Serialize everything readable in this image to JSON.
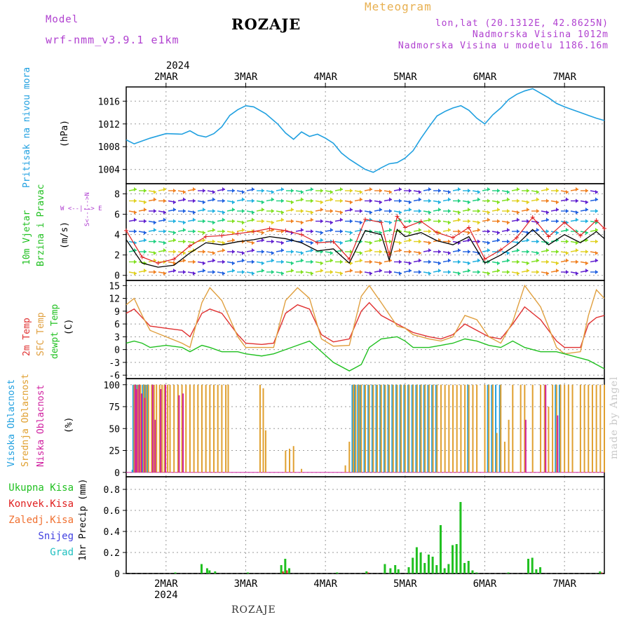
{
  "header": {
    "model_label": "Model",
    "model_name": "wrf-nmm_v3.9.1  e1km",
    "title": "ROZAJE",
    "meteogram": "Meteogram",
    "lonlat": "lon,lat (20.1312E, 42.8625N)",
    "altitude": "Nadmorska Visina 1012m",
    "model_altitude": "Nadmorska Visina u modelu 1186.16m"
  },
  "footer": {
    "station": "ROZAJE",
    "credit": "made by Angel"
  },
  "axis_top": {
    "year": "2024",
    "days": [
      "2MAR",
      "3MAR",
      "4MAR",
      "5MAR",
      "6MAR",
      "7MAR"
    ]
  },
  "axis_bottom": {
    "year": "2024",
    "days": [
      "2MAR",
      "3MAR",
      "4MAR",
      "5MAR",
      "6MAR",
      "7MAR"
    ]
  },
  "colors": {
    "pressure": "#20a0e0",
    "wind_speed": "#000000",
    "gust": "#e02020",
    "t2m": "#e03030",
    "sfc": "#e0a040",
    "dew": "#20c020",
    "high": "#20a0e0",
    "mid": "#e0a030",
    "low": "#d020a0",
    "precip_total": "#20c020",
    "precip_conv": "#e02020"
  },
  "chart_data": [
    {
      "type": "line",
      "panel": "pressure",
      "label_left": "Pritisak na nivou mora",
      "ylabel": "(hPa)",
      "yticks": [
        "1016",
        "1012",
        "1008",
        "1004"
      ],
      "ylim": [
        1001.5,
        1018.5
      ],
      "x_days": [
        1.5,
        1.6,
        1.8,
        2.0,
        2.2,
        2.3,
        2.4,
        2.5,
        2.6,
        2.7,
        2.8,
        2.9,
        3.0,
        3.1,
        3.25,
        3.4,
        3.5,
        3.6,
        3.7,
        3.8,
        3.9,
        4.0,
        4.1,
        4.2,
        4.3,
        4.4,
        4.5,
        4.6,
        4.7,
        4.8,
        4.9,
        5.0,
        5.1,
        5.2,
        5.3,
        5.4,
        5.5,
        5.6,
        5.7,
        5.8,
        5.9,
        6.0,
        6.1,
        6.2,
        6.3,
        6.4,
        6.5,
        6.6,
        6.7,
        6.8,
        6.9,
        7.0,
        7.1,
        7.2,
        7.3,
        7.4,
        7.5
      ],
      "series": [
        {
          "name": "",
          "values": [
            1009.2,
            1008.5,
            1009.5,
            1010.3,
            1010.2,
            1010.8,
            1010.0,
            1009.7,
            1010.3,
            1011.5,
            1013.5,
            1014.5,
            1015.2,
            1015.0,
            1013.8,
            1012.0,
            1010.4,
            1009.3,
            1010.6,
            1009.8,
            1010.2,
            1009.5,
            1008.6,
            1006.9,
            1005.8,
            1004.9,
            1004.0,
            1003.5,
            1004.3,
            1005.0,
            1005.2,
            1006.0,
            1007.3,
            1009.5,
            1011.5,
            1013.4,
            1014.2,
            1014.8,
            1015.2,
            1014.4,
            1013.0,
            1012.0,
            1013.6,
            1014.8,
            1016.3,
            1017.2,
            1017.8,
            1018.2,
            1017.4,
            1016.6,
            1015.6,
            1015.0,
            1014.5,
            1014.0,
            1013.5,
            1013.0,
            1012.6
          ]
        }
      ]
    },
    {
      "type": "line",
      "panel": "wind",
      "label_left_1": "10m Vjetar",
      "label_left_2": "Brzina i Pravac",
      "ylabel": "(m/s)",
      "compass": "W  <--|-->  E",
      "compass_ns": "S<--|-->N",
      "yticks": [
        "8",
        "6",
        "4",
        "2",
        "0"
      ],
      "ylim": [
        -0.5,
        9
      ],
      "x_days": [
        1.5,
        1.7,
        1.9,
        2.1,
        2.3,
        2.5,
        2.7,
        2.9,
        3.1,
        3.3,
        3.5,
        3.7,
        3.9,
        4.1,
        4.3,
        4.5,
        4.7,
        4.8,
        4.9,
        5.0,
        5.2,
        5.4,
        5.6,
        5.8,
        6.0,
        6.2,
        6.4,
        6.6,
        6.8,
        7.0,
        7.2,
        7.4,
        7.5
      ],
      "series": [
        {
          "name": "",
          "values": [
            3.5,
            1.2,
            0.8,
            1.0,
            2.2,
            3.2,
            3.0,
            3.3,
            3.5,
            3.8,
            3.6,
            3.2,
            2.4,
            2.6,
            1.2,
            4.4,
            4.0,
            1.5,
            4.5,
            3.8,
            4.2,
            3.4,
            3.0,
            3.8,
            1.2,
            2.0,
            3.0,
            4.5,
            3.0,
            4.0,
            3.2,
            4.3,
            3.6
          ]
        },
        {
          "name": "",
          "values": [
            4.4,
            1.8,
            1.2,
            1.6,
            2.9,
            3.8,
            3.9,
            4.1,
            4.3,
            4.6,
            4.4,
            4.0,
            3.2,
            3.3,
            1.6,
            5.5,
            5.2,
            2.0,
            5.8,
            4.7,
            5.3,
            4.2,
            3.7,
            4.7,
            1.6,
            2.5,
            3.7,
            5.7,
            3.8,
            5.2,
            3.9,
            5.4,
            4.6
          ]
        }
      ]
    },
    {
      "type": "line",
      "panel": "temperature",
      "label_left_1": "2m Temp",
      "label_left_2": "SFC Temp",
      "label_left_3": "dewpt Temp",
      "ylabel": "(C)",
      "yticks": [
        "15",
        "12",
        "9",
        "6",
        "3",
        "0",
        "-3",
        "-6"
      ],
      "ylim": [
        -6.8,
        16.2
      ],
      "x_days": [
        1.5,
        1.6,
        1.7,
        1.8,
        2.0,
        2.2,
        2.3,
        2.45,
        2.55,
        2.7,
        2.9,
        3.0,
        3.2,
        3.35,
        3.5,
        3.65,
        3.8,
        3.95,
        4.1,
        4.3,
        4.45,
        4.55,
        4.7,
        4.9,
        5.0,
        5.1,
        5.3,
        5.45,
        5.6,
        5.75,
        5.9,
        6.05,
        6.2,
        6.35,
        6.5,
        6.7,
        6.9,
        7.0,
        7.2,
        7.3,
        7.4,
        7.5
      ],
      "series": [
        {
          "name": "",
          "values": [
            8.5,
            9.5,
            7.5,
            5.5,
            5.0,
            4.5,
            3.0,
            8.5,
            9.5,
            8.5,
            3.5,
            1.5,
            1.2,
            1.5,
            8.5,
            10.5,
            9.5,
            3.5,
            1.8,
            2.5,
            9.0,
            11.0,
            8.0,
            6.0,
            5.0,
            4.0,
            3.0,
            2.5,
            3.5,
            6.0,
            4.5,
            3.0,
            2.5,
            6.0,
            10.0,
            7.0,
            2.0,
            0.5,
            0.5,
            6.0,
            7.5,
            8.0
          ]
        },
        {
          "name": "",
          "values": [
            10.5,
            12.0,
            8.0,
            4.5,
            3.0,
            1.5,
            0.5,
            11.0,
            14.5,
            11.5,
            3.0,
            0.5,
            0.5,
            0.5,
            11.5,
            14.5,
            12.0,
            2.5,
            0.8,
            1.0,
            12.5,
            15.0,
            11.0,
            5.5,
            5.0,
            3.5,
            2.5,
            2.0,
            3.0,
            8.0,
            7.0,
            3.0,
            1.5,
            6.5,
            15.0,
            10.0,
            0.5,
            -1.0,
            -0.5,
            8.0,
            14.0,
            12.0
          ]
        },
        {
          "name": "",
          "values": [
            1.5,
            2.0,
            1.5,
            0.5,
            1.0,
            0.5,
            -0.5,
            1.0,
            0.5,
            -0.5,
            -0.5,
            -1.0,
            -1.5,
            -1.0,
            0.0,
            1.0,
            2.0,
            -0.5,
            -3.0,
            -5.0,
            -3.5,
            0.5,
            2.5,
            3.0,
            2.0,
            0.5,
            0.5,
            1.0,
            1.5,
            2.5,
            2.0,
            1.0,
            0.5,
            2.0,
            0.5,
            -0.5,
            -0.5,
            -1.0,
            -2.0,
            -2.5,
            -3.5,
            -4.5
          ]
        }
      ]
    },
    {
      "type": "bar",
      "panel": "clouds",
      "label_left_1": "Visoka Oblacnost",
      "label_left_2": "Srednja Oblacnost",
      "label_left_3": "Niska Oblacnost",
      "ylabel": "(%)",
      "yticks": [
        "100",
        "75",
        "50",
        "25",
        "0"
      ],
      "ylim": [
        -5,
        107
      ],
      "x_days": [
        1.59,
        1.6,
        1.62,
        1.65,
        1.68,
        1.72,
        1.75,
        1.78,
        1.82,
        1.85,
        1.88,
        1.92,
        1.95,
        1.98,
        2.02,
        2.05,
        2.1,
        2.15,
        2.2,
        2.25,
        2.3,
        2.35,
        2.4,
        2.45,
        2.5,
        2.55,
        2.6,
        2.65,
        2.7,
        2.75,
        2.78,
        3.18,
        3.22,
        3.25,
        3.5,
        3.55,
        3.6,
        3.7,
        4.25,
        4.3,
        4.35,
        4.38,
        4.42,
        4.45,
        4.5,
        4.55,
        4.6,
        4.65,
        4.7,
        4.75,
        4.8,
        4.85,
        4.9,
        4.95,
        5.0,
        5.05,
        5.1,
        5.15,
        5.2,
        5.25,
        5.3,
        5.35,
        5.4,
        5.45,
        5.5,
        5.55,
        5.6,
        5.65,
        5.7,
        5.75,
        5.8,
        5.85,
        5.9,
        6.0,
        6.05,
        6.1,
        6.15,
        6.2,
        6.25,
        6.3,
        6.35,
        6.45,
        6.5,
        6.6,
        6.7,
        6.75,
        6.8,
        6.85,
        6.9,
        6.95,
        7.0,
        7.05,
        7.1,
        7.2,
        7.25,
        7.3,
        7.35,
        7.4,
        7.45,
        7.5
      ],
      "series": [
        {
          "name": "",
          "values": [
            3,
            100,
            100,
            100,
            100,
            100,
            100,
            100,
            0,
            0,
            0,
            0,
            0,
            0,
            0,
            0,
            0,
            0,
            0,
            0,
            0,
            0,
            0,
            0,
            0,
            0,
            0,
            0,
            0,
            0,
            0,
            0,
            0,
            0,
            0,
            0,
            0,
            0,
            0,
            0,
            100,
            100,
            100,
            100,
            100,
            100,
            100,
            100,
            100,
            100,
            100,
            100,
            100,
            100,
            100,
            100,
            100,
            100,
            100,
            100,
            100,
            100,
            100,
            0,
            0,
            0,
            0,
            0,
            0,
            0,
            100,
            0,
            0,
            0,
            100,
            100,
            100,
            100,
            0,
            0,
            0,
            0,
            0,
            0,
            0,
            0,
            0,
            0,
            100,
            100,
            0,
            0,
            0,
            0,
            0,
            0,
            0,
            0,
            0,
            0
          ]
        },
        {
          "name": "",
          "values": [
            0,
            100,
            100,
            100,
            100,
            100,
            100,
            100,
            100,
            100,
            100,
            100,
            100,
            100,
            100,
            100,
            100,
            100,
            100,
            100,
            100,
            100,
            100,
            100,
            100,
            100,
            100,
            100,
            100,
            100,
            100,
            100,
            96,
            48,
            25,
            27,
            30,
            4,
            8,
            35,
            100,
            100,
            100,
            100,
            100,
            100,
            100,
            100,
            100,
            100,
            100,
            100,
            100,
            100,
            100,
            100,
            100,
            100,
            100,
            100,
            100,
            100,
            100,
            100,
            100,
            100,
            100,
            100,
            100,
            100,
            100,
            100,
            100,
            100,
            100,
            100,
            45,
            100,
            35,
            60,
            100,
            100,
            100,
            100,
            100,
            100,
            75,
            100,
            100,
            100,
            100,
            100,
            100,
            100,
            100,
            100,
            100,
            100,
            100,
            100
          ]
        },
        {
          "name": "",
          "values": [
            0,
            100,
            95,
            100,
            90,
            85,
            0,
            0,
            100,
            60,
            0,
            95,
            0,
            100,
            0,
            0,
            0,
            88,
            90,
            0,
            0,
            0,
            0,
            0,
            0,
            0,
            0,
            0,
            0,
            0,
            0,
            0,
            0,
            0,
            0,
            0,
            0,
            0,
            0,
            0,
            0,
            0,
            0,
            0,
            0,
            0,
            0,
            0,
            0,
            0,
            0,
            0,
            0,
            0,
            0,
            0,
            0,
            0,
            0,
            0,
            0,
            0,
            0,
            0,
            0,
            0,
            0,
            0,
            0,
            0,
            0,
            0,
            0,
            0,
            0,
            0,
            0,
            0,
            0,
            0,
            0,
            0,
            60,
            0,
            0,
            100,
            0,
            0,
            65,
            0,
            0,
            0,
            0,
            0,
            0,
            0,
            0,
            0,
            0,
            0
          ]
        }
      ]
    },
    {
      "type": "bar",
      "panel": "precipitation",
      "legend": [
        "Ukupna Kisa",
        "Konvek.Kisa",
        "Zaledj.Kisa",
        "Snijeg",
        "Grad"
      ],
      "ylabel": "1hr Precip (mm)",
      "yticks": [
        "0.8",
        "0.6",
        "0.4",
        "0.2",
        "0"
      ],
      "ylim": [
        0,
        0.92
      ],
      "x_days": [
        2.12,
        2.45,
        2.52,
        2.55,
        2.62,
        3.03,
        3.45,
        3.5,
        3.55,
        4.15,
        4.52,
        4.75,
        4.82,
        4.88,
        4.92,
        5.05,
        5.1,
        5.15,
        5.2,
        5.25,
        5.3,
        5.35,
        5.4,
        5.45,
        5.5,
        5.55,
        5.6,
        5.65,
        5.7,
        5.75,
        5.8,
        5.85,
        5.9,
        6.3,
        6.55,
        6.6,
        6.65,
        6.7,
        7.45
      ],
      "series": [
        {
          "name": "",
          "values": [
            0.01,
            0.09,
            0.05,
            0.03,
            0.02,
            0.01,
            0.08,
            0.14,
            0.05,
            0.01,
            0.02,
            0.09,
            0.05,
            0.08,
            0.04,
            0.06,
            0.15,
            0.25,
            0.2,
            0.1,
            0.18,
            0.16,
            0.08,
            0.46,
            0.05,
            0.09,
            0.27,
            0.28,
            0.68,
            0.1,
            0.12,
            0.03,
            0.01,
            0.01,
            0.14,
            0.15,
            0.04,
            0.06,
            0.02
          ]
        },
        {
          "name": "",
          "values": [
            0,
            0,
            0,
            0,
            0,
            0,
            0.02,
            0.03,
            0,
            0,
            0.01,
            0,
            0,
            0,
            0,
            0,
            0,
            0,
            0,
            0,
            0,
            0,
            0,
            0,
            0,
            0,
            0,
            0,
            0,
            0,
            0,
            0,
            0,
            0,
            0,
            0,
            0,
            0,
            0.01
          ]
        }
      ]
    }
  ]
}
